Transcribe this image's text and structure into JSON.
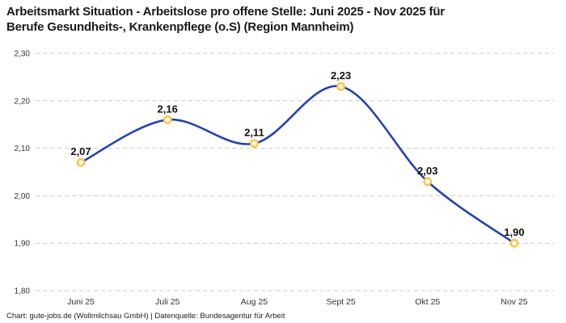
{
  "page": {
    "title": "Arbeitsmarkt Situation - Arbeitslose pro offene Stelle: Juni 2025 - Nov 2025 für\nBerufe Gesundheits-, Krankenpflege (o.S) (Region Mannheim)",
    "footer": "Chart: gute-jobs.de (Wollmilchsau GmbH) | Datenquelle: Bundesagentur für Arbeit"
  },
  "chart_data": {
    "type": "line",
    "title": "Arbeitsmarkt Situation - Arbeitslose pro offene Stelle: Juni 2025 - Nov 2025 für Berufe Gesundheits-, Krankenpflege (o.S) (Region Mannheim)",
    "categories": [
      "Juni 25",
      "Juli 25",
      "Aug 25",
      "Sept 25",
      "Okt 25",
      "Nov 25"
    ],
    "values": [
      2.07,
      2.16,
      2.11,
      2.23,
      2.03,
      1.9
    ],
    "value_labels": [
      "2,07",
      "2,16",
      "2,11",
      "2,23",
      "2,03",
      "1,90"
    ],
    "xlabel": "",
    "ylabel": "",
    "ylim": [
      1.8,
      2.3
    ],
    "yticks": [
      1.8,
      1.9,
      2.0,
      2.1,
      2.2,
      2.3
    ],
    "ytick_labels": [
      "1,80",
      "1,90",
      "2,00",
      "2,10",
      "2,20",
      "2,30"
    ],
    "grid": "horizontal-dashed",
    "legend": "none",
    "colors": {
      "line": "#2443a8",
      "marker_ring": "#fdc43f",
      "marker_fill": "#ffffff",
      "gridline": "#c9c9c9",
      "data_label": "#111111",
      "tick_label": "#333333"
    }
  }
}
